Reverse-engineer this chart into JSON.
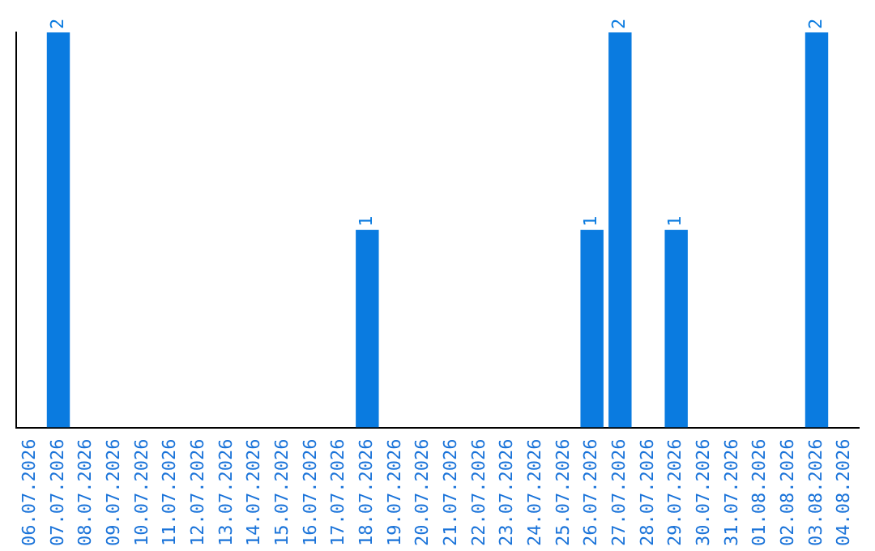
{
  "chart_data": {
    "type": "bar",
    "categories": [
      "06.07.2026",
      "07.07.2026",
      "08.07.2026",
      "09.07.2026",
      "10.07.2026",
      "11.07.2026",
      "12.07.2026",
      "13.07.2026",
      "14.07.2026",
      "15.07.2026",
      "16.07.2026",
      "17.07.2026",
      "18.07.2026",
      "19.07.2026",
      "20.07.2026",
      "21.07.2026",
      "22.07.2026",
      "23.07.2026",
      "24.07.2026",
      "25.07.2026",
      "26.07.2026",
      "27.07.2026",
      "28.07.2026",
      "29.07.2026",
      "30.07.2026",
      "31.07.2026",
      "01.08.2026",
      "02.08.2026",
      "03.08.2026",
      "04.08.2026"
    ],
    "values": [
      0,
      2,
      0,
      0,
      0,
      0,
      0,
      0,
      0,
      0,
      0,
      0,
      1,
      0,
      0,
      0,
      0,
      0,
      0,
      0,
      1,
      2,
      0,
      1,
      0,
      0,
      0,
      0,
      2,
      0
    ],
    "color": "#0a7be0",
    "ylim": [
      0,
      2
    ],
    "value_labels": [
      null,
      "2",
      null,
      null,
      null,
      null,
      null,
      null,
      null,
      null,
      null,
      null,
      "1",
      null,
      null,
      null,
      null,
      null,
      null,
      null,
      "1",
      "2",
      null,
      "1",
      null,
      null,
      null,
      null,
      "2",
      null
    ],
    "tick_labels": "x",
    "grid": false,
    "legend": false
  }
}
